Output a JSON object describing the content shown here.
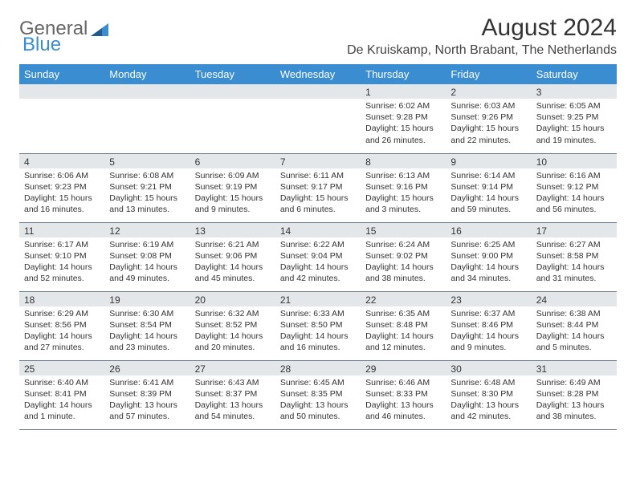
{
  "logo": {
    "text1": "General",
    "text2": "Blue"
  },
  "title": {
    "month": "August 2024",
    "location": "De Kruiskamp, North Brabant, The Netherlands"
  },
  "colors": {
    "header_bg": "#3a8dd0",
    "daynum_bg": "#e4e7ea",
    "row_border": "#6b7c8e"
  },
  "weekdays": [
    "Sunday",
    "Monday",
    "Tuesday",
    "Wednesday",
    "Thursday",
    "Friday",
    "Saturday"
  ],
  "weeks": [
    [
      {
        "n": "",
        "sr": "",
        "ss": "",
        "dl": ""
      },
      {
        "n": "",
        "sr": "",
        "ss": "",
        "dl": ""
      },
      {
        "n": "",
        "sr": "",
        "ss": "",
        "dl": ""
      },
      {
        "n": "",
        "sr": "",
        "ss": "",
        "dl": ""
      },
      {
        "n": "1",
        "sr": "Sunrise: 6:02 AM",
        "ss": "Sunset: 9:28 PM",
        "dl": "Daylight: 15 hours and 26 minutes."
      },
      {
        "n": "2",
        "sr": "Sunrise: 6:03 AM",
        "ss": "Sunset: 9:26 PM",
        "dl": "Daylight: 15 hours and 22 minutes."
      },
      {
        "n": "3",
        "sr": "Sunrise: 6:05 AM",
        "ss": "Sunset: 9:25 PM",
        "dl": "Daylight: 15 hours and 19 minutes."
      }
    ],
    [
      {
        "n": "4",
        "sr": "Sunrise: 6:06 AM",
        "ss": "Sunset: 9:23 PM",
        "dl": "Daylight: 15 hours and 16 minutes."
      },
      {
        "n": "5",
        "sr": "Sunrise: 6:08 AM",
        "ss": "Sunset: 9:21 PM",
        "dl": "Daylight: 15 hours and 13 minutes."
      },
      {
        "n": "6",
        "sr": "Sunrise: 6:09 AM",
        "ss": "Sunset: 9:19 PM",
        "dl": "Daylight: 15 hours and 9 minutes."
      },
      {
        "n": "7",
        "sr": "Sunrise: 6:11 AM",
        "ss": "Sunset: 9:17 PM",
        "dl": "Daylight: 15 hours and 6 minutes."
      },
      {
        "n": "8",
        "sr": "Sunrise: 6:13 AM",
        "ss": "Sunset: 9:16 PM",
        "dl": "Daylight: 15 hours and 3 minutes."
      },
      {
        "n": "9",
        "sr": "Sunrise: 6:14 AM",
        "ss": "Sunset: 9:14 PM",
        "dl": "Daylight: 14 hours and 59 minutes."
      },
      {
        "n": "10",
        "sr": "Sunrise: 6:16 AM",
        "ss": "Sunset: 9:12 PM",
        "dl": "Daylight: 14 hours and 56 minutes."
      }
    ],
    [
      {
        "n": "11",
        "sr": "Sunrise: 6:17 AM",
        "ss": "Sunset: 9:10 PM",
        "dl": "Daylight: 14 hours and 52 minutes."
      },
      {
        "n": "12",
        "sr": "Sunrise: 6:19 AM",
        "ss": "Sunset: 9:08 PM",
        "dl": "Daylight: 14 hours and 49 minutes."
      },
      {
        "n": "13",
        "sr": "Sunrise: 6:21 AM",
        "ss": "Sunset: 9:06 PM",
        "dl": "Daylight: 14 hours and 45 minutes."
      },
      {
        "n": "14",
        "sr": "Sunrise: 6:22 AM",
        "ss": "Sunset: 9:04 PM",
        "dl": "Daylight: 14 hours and 42 minutes."
      },
      {
        "n": "15",
        "sr": "Sunrise: 6:24 AM",
        "ss": "Sunset: 9:02 PM",
        "dl": "Daylight: 14 hours and 38 minutes."
      },
      {
        "n": "16",
        "sr": "Sunrise: 6:25 AM",
        "ss": "Sunset: 9:00 PM",
        "dl": "Daylight: 14 hours and 34 minutes."
      },
      {
        "n": "17",
        "sr": "Sunrise: 6:27 AM",
        "ss": "Sunset: 8:58 PM",
        "dl": "Daylight: 14 hours and 31 minutes."
      }
    ],
    [
      {
        "n": "18",
        "sr": "Sunrise: 6:29 AM",
        "ss": "Sunset: 8:56 PM",
        "dl": "Daylight: 14 hours and 27 minutes."
      },
      {
        "n": "19",
        "sr": "Sunrise: 6:30 AM",
        "ss": "Sunset: 8:54 PM",
        "dl": "Daylight: 14 hours and 23 minutes."
      },
      {
        "n": "20",
        "sr": "Sunrise: 6:32 AM",
        "ss": "Sunset: 8:52 PM",
        "dl": "Daylight: 14 hours and 20 minutes."
      },
      {
        "n": "21",
        "sr": "Sunrise: 6:33 AM",
        "ss": "Sunset: 8:50 PM",
        "dl": "Daylight: 14 hours and 16 minutes."
      },
      {
        "n": "22",
        "sr": "Sunrise: 6:35 AM",
        "ss": "Sunset: 8:48 PM",
        "dl": "Daylight: 14 hours and 12 minutes."
      },
      {
        "n": "23",
        "sr": "Sunrise: 6:37 AM",
        "ss": "Sunset: 8:46 PM",
        "dl": "Daylight: 14 hours and 9 minutes."
      },
      {
        "n": "24",
        "sr": "Sunrise: 6:38 AM",
        "ss": "Sunset: 8:44 PM",
        "dl": "Daylight: 14 hours and 5 minutes."
      }
    ],
    [
      {
        "n": "25",
        "sr": "Sunrise: 6:40 AM",
        "ss": "Sunset: 8:41 PM",
        "dl": "Daylight: 14 hours and 1 minute."
      },
      {
        "n": "26",
        "sr": "Sunrise: 6:41 AM",
        "ss": "Sunset: 8:39 PM",
        "dl": "Daylight: 13 hours and 57 minutes."
      },
      {
        "n": "27",
        "sr": "Sunrise: 6:43 AM",
        "ss": "Sunset: 8:37 PM",
        "dl": "Daylight: 13 hours and 54 minutes."
      },
      {
        "n": "28",
        "sr": "Sunrise: 6:45 AM",
        "ss": "Sunset: 8:35 PM",
        "dl": "Daylight: 13 hours and 50 minutes."
      },
      {
        "n": "29",
        "sr": "Sunrise: 6:46 AM",
        "ss": "Sunset: 8:33 PM",
        "dl": "Daylight: 13 hours and 46 minutes."
      },
      {
        "n": "30",
        "sr": "Sunrise: 6:48 AM",
        "ss": "Sunset: 8:30 PM",
        "dl": "Daylight: 13 hours and 42 minutes."
      },
      {
        "n": "31",
        "sr": "Sunrise: 6:49 AM",
        "ss": "Sunset: 8:28 PM",
        "dl": "Daylight: 13 hours and 38 minutes."
      }
    ]
  ]
}
